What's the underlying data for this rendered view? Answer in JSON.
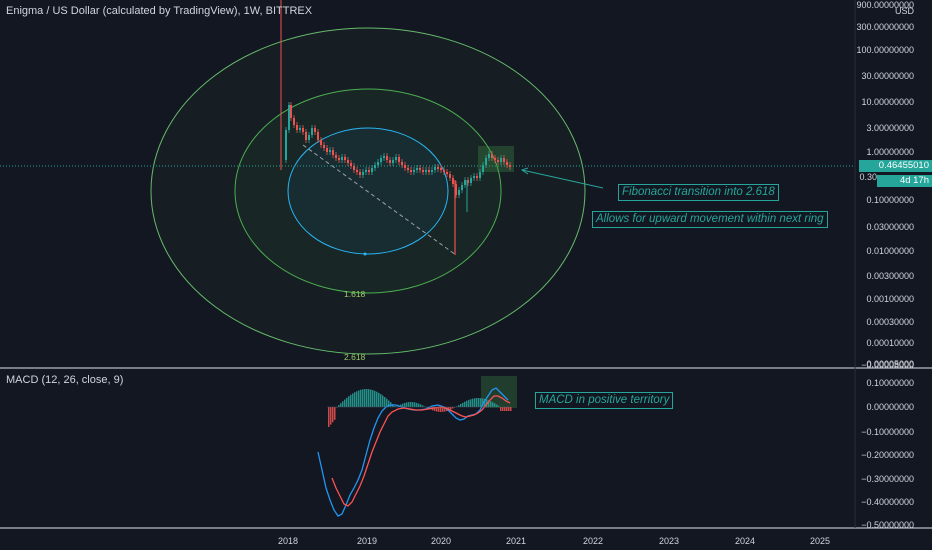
{
  "chart": {
    "title": "Enigma / US Dollar (calculated by TradingView), 1W, BITTREX",
    "currency": "USD",
    "price_axis": [
      "900.00000000",
      "300.00000000",
      "100.00000000",
      "30.00000000",
      "10.00000000",
      "3.00000000",
      "1.00000000",
      "0.30",
      "0.10000000",
      "0.03000000",
      "0.01000000",
      "0.00300000",
      "0.00100000",
      "0.00030000",
      "0.00010000",
      "0.00005000",
      "−0.00008000"
    ],
    "current_price": "0.46455010",
    "countdown": "4d 17h",
    "time_axis": [
      "2018",
      "2019",
      "2020",
      "2021",
      "2022",
      "2023",
      "2024",
      "2025"
    ]
  },
  "macd": {
    "title": "MACD (12, 26, close, 9)",
    "axis": [
      "0.10000000",
      "0.00000000",
      "−0.10000000",
      "−0.20000000",
      "−0.30000000",
      "−0.40000000",
      "−0.50000000"
    ]
  },
  "annotations": {
    "fib_transition": "Fibonacci transition into 2.618",
    "upward_movement": "Allows for upward movement within next ring",
    "macd_positive": "MACD in positive territory"
  },
  "rings": {
    "inner_label": "1.618",
    "outer_label": "2.618"
  },
  "colors": {
    "background": "#131722",
    "up": "#26a69a",
    "down": "#ef5350",
    "ring_outer": "#66bb6a",
    "ring_middle": "#4caf50",
    "ring_inner": "#29b6f6",
    "macd_line": "#2196f3",
    "signal_line": "#ff5252"
  }
}
